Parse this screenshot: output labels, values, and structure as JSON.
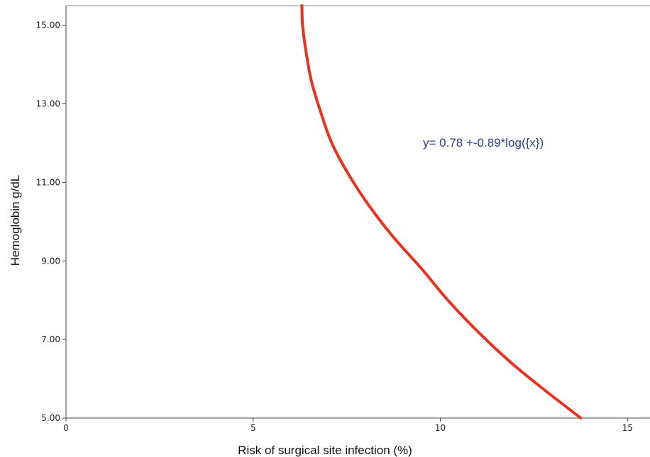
{
  "chart_data": {
    "type": "line",
    "xlabel": "Risk of surgical site infection (%)",
    "ylabel": "Hemoglobin g/dL",
    "xlim": [
      0,
      15.6
    ],
    "ylim": [
      5,
      15.5
    ],
    "xticks": [
      0,
      5,
      10,
      15
    ],
    "xtick_labels": [
      "0",
      "5",
      "10",
      "15"
    ],
    "yticks": [
      5,
      7,
      9,
      11,
      13,
      15
    ],
    "ytick_labels": [
      "5.00",
      "7.00",
      "9.00",
      "11.00",
      "13.00",
      "15.00"
    ],
    "grid": false,
    "annotation": "y= 0.78 +-0.89*log({x})",
    "line_color": "#e8321e",
    "annotation_color": "#2c3e8c",
    "series": [
      {
        "x": [
          13.75,
          12.8,
          11.9,
          11.0,
          10.2,
          9.5,
          8.75,
          8.1,
          7.55,
          7.1,
          6.8,
          6.55,
          6.4,
          6.32,
          6.3
        ],
        "y": [
          5.0,
          5.7,
          6.4,
          7.2,
          8.0,
          8.8,
          9.6,
          10.4,
          11.2,
          12.0,
          12.8,
          13.6,
          14.4,
          15.0,
          15.5
        ]
      }
    ]
  }
}
